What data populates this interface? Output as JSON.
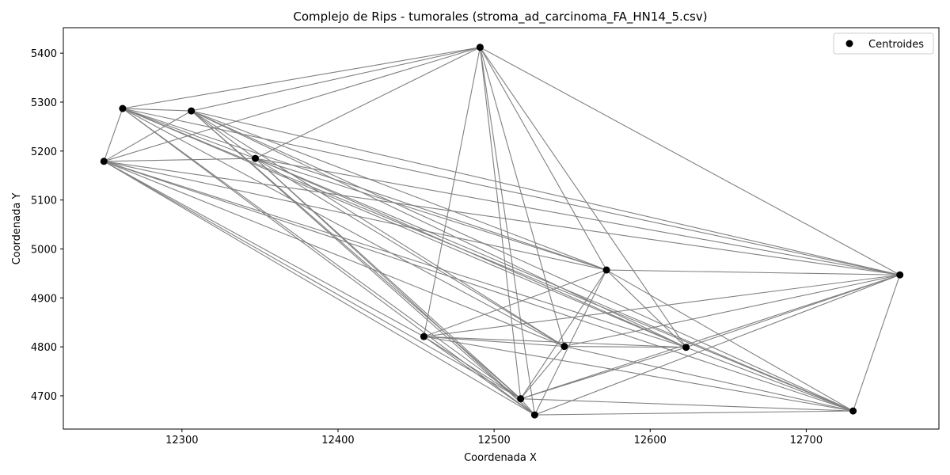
{
  "chart_data": {
    "type": "scatter",
    "title": "Complejo de Rips - tumorales (stroma_ad_carcinoma_FA_HN14_5.csv)",
    "xlabel": "Coordenada X",
    "ylabel": "Coordenada Y",
    "xlim": [
      12224,
      12785
    ],
    "ylim": [
      4632,
      5452
    ],
    "xticks": [
      12300,
      12400,
      12500,
      12600,
      12700
    ],
    "yticks": [
      4700,
      4800,
      4900,
      5000,
      5100,
      5200,
      5300,
      5400
    ],
    "grid": false,
    "legend": {
      "position": "top-right",
      "entries": [
        "Centroides"
      ]
    },
    "colors": {
      "points": "#000000",
      "edges": "#808080"
    },
    "series": [
      {
        "name": "Centroides",
        "points": [
          {
            "x": 12262,
            "y": 5287
          },
          {
            "x": 12306,
            "y": 5282
          },
          {
            "x": 12250,
            "y": 5179
          },
          {
            "x": 12347,
            "y": 5185
          },
          {
            "x": 12491,
            "y": 5412
          },
          {
            "x": 12572,
            "y": 4957
          },
          {
            "x": 12760,
            "y": 4947
          },
          {
            "x": 12455,
            "y": 4821
          },
          {
            "x": 12545,
            "y": 4801
          },
          {
            "x": 12623,
            "y": 4799
          },
          {
            "x": 12517,
            "y": 4694
          },
          {
            "x": 12526,
            "y": 4661
          },
          {
            "x": 12730,
            "y": 4669
          }
        ]
      }
    ],
    "edges": [
      [
        0,
        1
      ],
      [
        0,
        2
      ],
      [
        0,
        4
      ],
      [
        0,
        6
      ],
      [
        0,
        8
      ],
      [
        0,
        9
      ],
      [
        0,
        10
      ],
      [
        0,
        11
      ],
      [
        0,
        12
      ],
      [
        0,
        5
      ],
      [
        0,
        3
      ],
      [
        1,
        2
      ],
      [
        1,
        4
      ],
      [
        1,
        5
      ],
      [
        1,
        6
      ],
      [
        1,
        8
      ],
      [
        1,
        9
      ],
      [
        1,
        10
      ],
      [
        1,
        11
      ],
      [
        1,
        12
      ],
      [
        1,
        3
      ],
      [
        2,
        3
      ],
      [
        2,
        4
      ],
      [
        2,
        5
      ],
      [
        2,
        6
      ],
      [
        2,
        7
      ],
      [
        2,
        8
      ],
      [
        2,
        9
      ],
      [
        2,
        10
      ],
      [
        2,
        11
      ],
      [
        2,
        12
      ],
      [
        3,
        4
      ],
      [
        3,
        5
      ],
      [
        3,
        6
      ],
      [
        3,
        8
      ],
      [
        3,
        9
      ],
      [
        3,
        10
      ],
      [
        3,
        11
      ],
      [
        3,
        12
      ],
      [
        4,
        5
      ],
      [
        4,
        6
      ],
      [
        4,
        7
      ],
      [
        4,
        8
      ],
      [
        4,
        9
      ],
      [
        4,
        10
      ],
      [
        4,
        11
      ],
      [
        5,
        6
      ],
      [
        5,
        7
      ],
      [
        5,
        9
      ],
      [
        5,
        10
      ],
      [
        5,
        11
      ],
      [
        5,
        12
      ],
      [
        6,
        7
      ],
      [
        6,
        8
      ],
      [
        6,
        9
      ],
      [
        6,
        10
      ],
      [
        6,
        11
      ],
      [
        6,
        12
      ],
      [
        7,
        8
      ],
      [
        7,
        9
      ],
      [
        7,
        10
      ],
      [
        7,
        11
      ],
      [
        7,
        12
      ],
      [
        8,
        9
      ],
      [
        8,
        10
      ],
      [
        8,
        12
      ],
      [
        9,
        10
      ],
      [
        9,
        12
      ],
      [
        10,
        11
      ],
      [
        10,
        12
      ],
      [
        11,
        12
      ]
    ]
  }
}
